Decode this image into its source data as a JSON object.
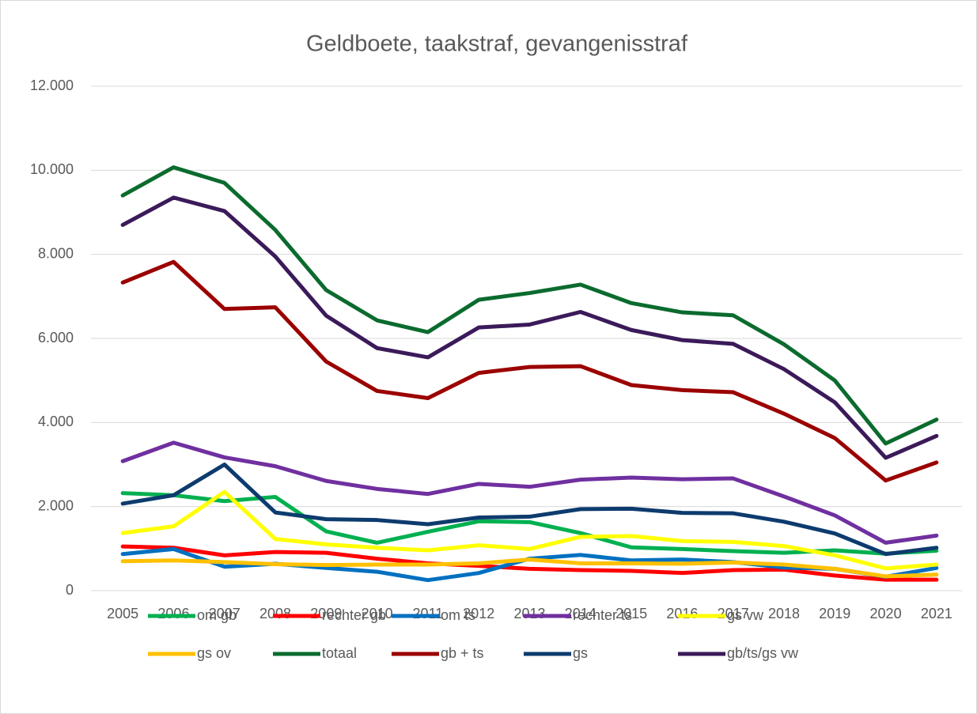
{
  "chart_data": {
    "type": "line",
    "title": "Geldboete, taakstraf, gevangenisstraf",
    "categories": [
      "2005",
      "2006",
      "2007",
      "2008",
      "2009",
      "2010",
      "2011",
      "2012",
      "2013",
      "2014",
      "2015",
      "2016",
      "2017",
      "2018",
      "2019",
      "2020",
      "2021"
    ],
    "ylim": [
      0,
      12000
    ],
    "yticks": [
      0,
      {
        "value": 2000,
        "label": "2.000"
      },
      {
        "value": 4000,
        "label": "4.000"
      },
      {
        "value": 6000,
        "label": "6.000"
      },
      {
        "value": 8000,
        "label": "8.000"
      },
      {
        "value": 10000,
        "label": "10.000"
      },
      {
        "value": 12000,
        "label": "12.000"
      }
    ],
    "grid": true,
    "legend": "bottom",
    "series": [
      {
        "name": "om gb",
        "color": "#00b050",
        "values": [
          2320,
          2270,
          2130,
          2230,
          1410,
          1140,
          1400,
          1650,
          1630,
          1370,
          1030,
          990,
          940,
          900,
          960,
          880,
          950
        ]
      },
      {
        "name": "rechter gb",
        "color": "#ff0000",
        "values": [
          1050,
          1020,
          840,
          920,
          900,
          760,
          650,
          590,
          520,
          490,
          470,
          420,
          490,
          500,
          360,
          260,
          260
        ]
      },
      {
        "name": "om ts",
        "color": "#0070c0",
        "values": [
          870,
          990,
          570,
          640,
          540,
          450,
          250,
          420,
          760,
          850,
          720,
          740,
          680,
          550,
          520,
          330,
          540
        ]
      },
      {
        "name": "rechter ts",
        "color": "#7030a0",
        "values": [
          3080,
          3520,
          3170,
          2960,
          2610,
          2420,
          2300,
          2540,
          2470,
          2640,
          2690,
          2650,
          2670,
          2240,
          1790,
          1140,
          1310
        ]
      },
      {
        "name": "gs vw",
        "color": "#ffff00",
        "values": [
          1370,
          1530,
          2350,
          1230,
          1100,
          1020,
          960,
          1080,
          990,
          1280,
          1300,
          1180,
          1160,
          1060,
          840,
          530,
          620
        ]
      },
      {
        "name": "gs ov",
        "color": "#ffc000",
        "values": [
          700,
          720,
          680,
          630,
          610,
          620,
          620,
          650,
          740,
          650,
          650,
          640,
          670,
          620,
          520,
          340,
          380
        ]
      },
      {
        "name": "totaal",
        "color": "#0b6b2e",
        "values": [
          9400,
          10070,
          9700,
          8580,
          7150,
          6430,
          6150,
          6920,
          7080,
          7280,
          6840,
          6620,
          6550,
          5860,
          5000,
          3500,
          4070
        ]
      },
      {
        "name": "gb + ts",
        "color": "#9b0000",
        "values": [
          7330,
          7820,
          6700,
          6740,
          5450,
          4750,
          4580,
          5180,
          5320,
          5340,
          4890,
          4770,
          4720,
          4210,
          3630,
          2620,
          3050
        ]
      },
      {
        "name": "gs",
        "color": "#0d3b6e",
        "values": [
          2070,
          2270,
          3000,
          1860,
          1700,
          1680,
          1580,
          1740,
          1760,
          1940,
          1950,
          1850,
          1840,
          1640,
          1360,
          870,
          1020
        ]
      },
      {
        "name": "gb/ts/gs vw",
        "color": "#3b1a5a",
        "values": [
          8700,
          9350,
          9030,
          7950,
          6540,
          5770,
          5550,
          6260,
          6330,
          6630,
          6200,
          5960,
          5870,
          5270,
          4480,
          3160,
          3680
        ]
      }
    ]
  }
}
